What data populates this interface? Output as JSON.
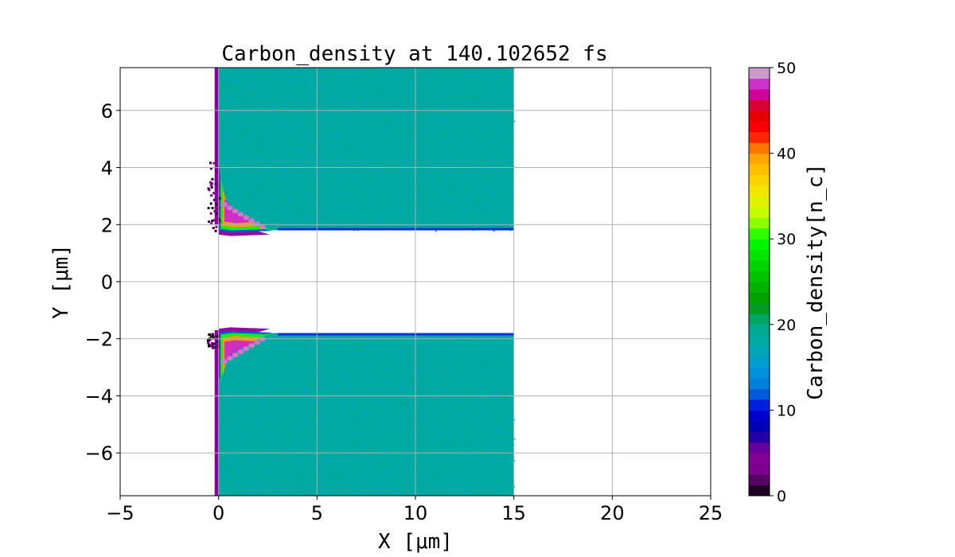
{
  "chart_data": {
    "type": "heatmap",
    "title": "Carbon_density at 140.102652 fs",
    "xlabel": "X [μm]",
    "ylabel": "Y [μm]",
    "colorbar_label": "Carbon_density[n_c]",
    "colormap": "nipy_spectral",
    "xlim": [
      -5,
      25
    ],
    "ylim": [
      -7.5,
      7.5
    ],
    "clim": [
      0,
      50
    ],
    "xticks": [
      -5,
      0,
      5,
      10,
      15,
      20,
      25
    ],
    "xtick_labels": [
      "−5",
      "0",
      "5",
      "10",
      "15",
      "20",
      "25"
    ],
    "yticks": [
      -6,
      -4,
      -2,
      0,
      2,
      4,
      6
    ],
    "ytick_labels": [
      "−6",
      "−4",
      "−2",
      "0",
      "2",
      "4",
      "6"
    ],
    "cbar_ticks": [
      0,
      10,
      20,
      30,
      40,
      50
    ],
    "cbar_tick_labels": [
      "0",
      "10",
      "20",
      "30",
      "40",
      "50"
    ],
    "grid": true,
    "regions": [
      {
        "name": "upper-slab",
        "x": [
          0,
          15
        ],
        "y": [
          1.8,
          7.5
        ],
        "density": 18
      },
      {
        "name": "lower-slab",
        "x": [
          0,
          15
        ],
        "y": [
          -7.5,
          -1.8
        ],
        "density": 18
      }
    ],
    "features": [
      {
        "name": "upper-edge-compression",
        "x": [
          0,
          3
        ],
        "y": [
          1.8,
          4
        ],
        "peak_density": 50
      },
      {
        "name": "lower-edge-compression",
        "x": [
          0,
          3
        ],
        "y": [
          -3.5,
          -1.8
        ],
        "peak_density": 50
      },
      {
        "name": "front-surface-layer",
        "x": [
          -0.2,
          0
        ],
        "y": [
          -7.5,
          7.5
        ],
        "density": 5
      }
    ]
  }
}
